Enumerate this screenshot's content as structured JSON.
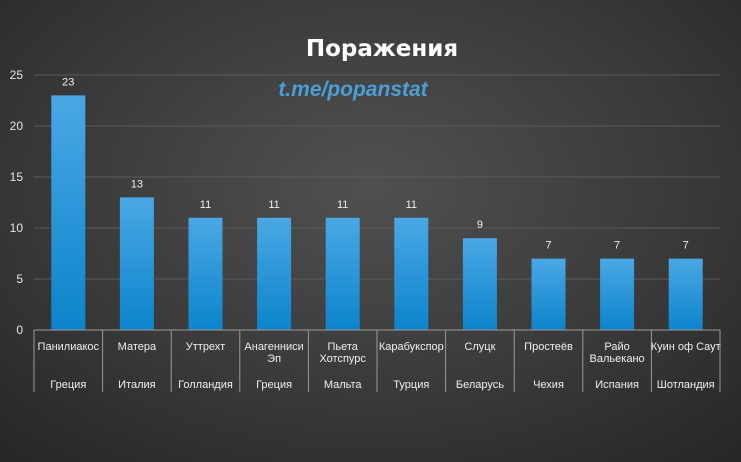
{
  "chart_data": {
    "type": "bar",
    "title": "Поражения",
    "watermark": "t.me/popanstat",
    "categories": [
      {
        "name": [
          "Панилиакос"
        ],
        "country": "Греция"
      },
      {
        "name": [
          "Матера"
        ],
        "country": "Италия"
      },
      {
        "name": [
          "Уттрехт"
        ],
        "country": "Голландия"
      },
      {
        "name": [
          "Анагенниси",
          "Эп"
        ],
        "country": "Греция"
      },
      {
        "name": [
          "Пьета",
          "Хотспурс"
        ],
        "country": "Мальта"
      },
      {
        "name": [
          "Карабукспор"
        ],
        "country": "Турция"
      },
      {
        "name": [
          "Слуцк"
        ],
        "country": "Беларусь"
      },
      {
        "name": [
          "Простеёв"
        ],
        "country": "Чехия"
      },
      {
        "name": [
          "Райо",
          "Вальекано"
        ],
        "country": "Испания"
      },
      {
        "name": [
          "Куин оф Саут"
        ],
        "country": "Шотландия"
      }
    ],
    "values": [
      23,
      13,
      11,
      11,
      11,
      11,
      9,
      7,
      7,
      7
    ],
    "ylim": [
      0,
      25
    ],
    "yticks": [
      0,
      5,
      10,
      15,
      20,
      25
    ],
    "grid": true,
    "data_labels": true,
    "colors": {
      "bar_top": "#4aa8e4",
      "bar_bottom": "#0c84cc"
    }
  }
}
